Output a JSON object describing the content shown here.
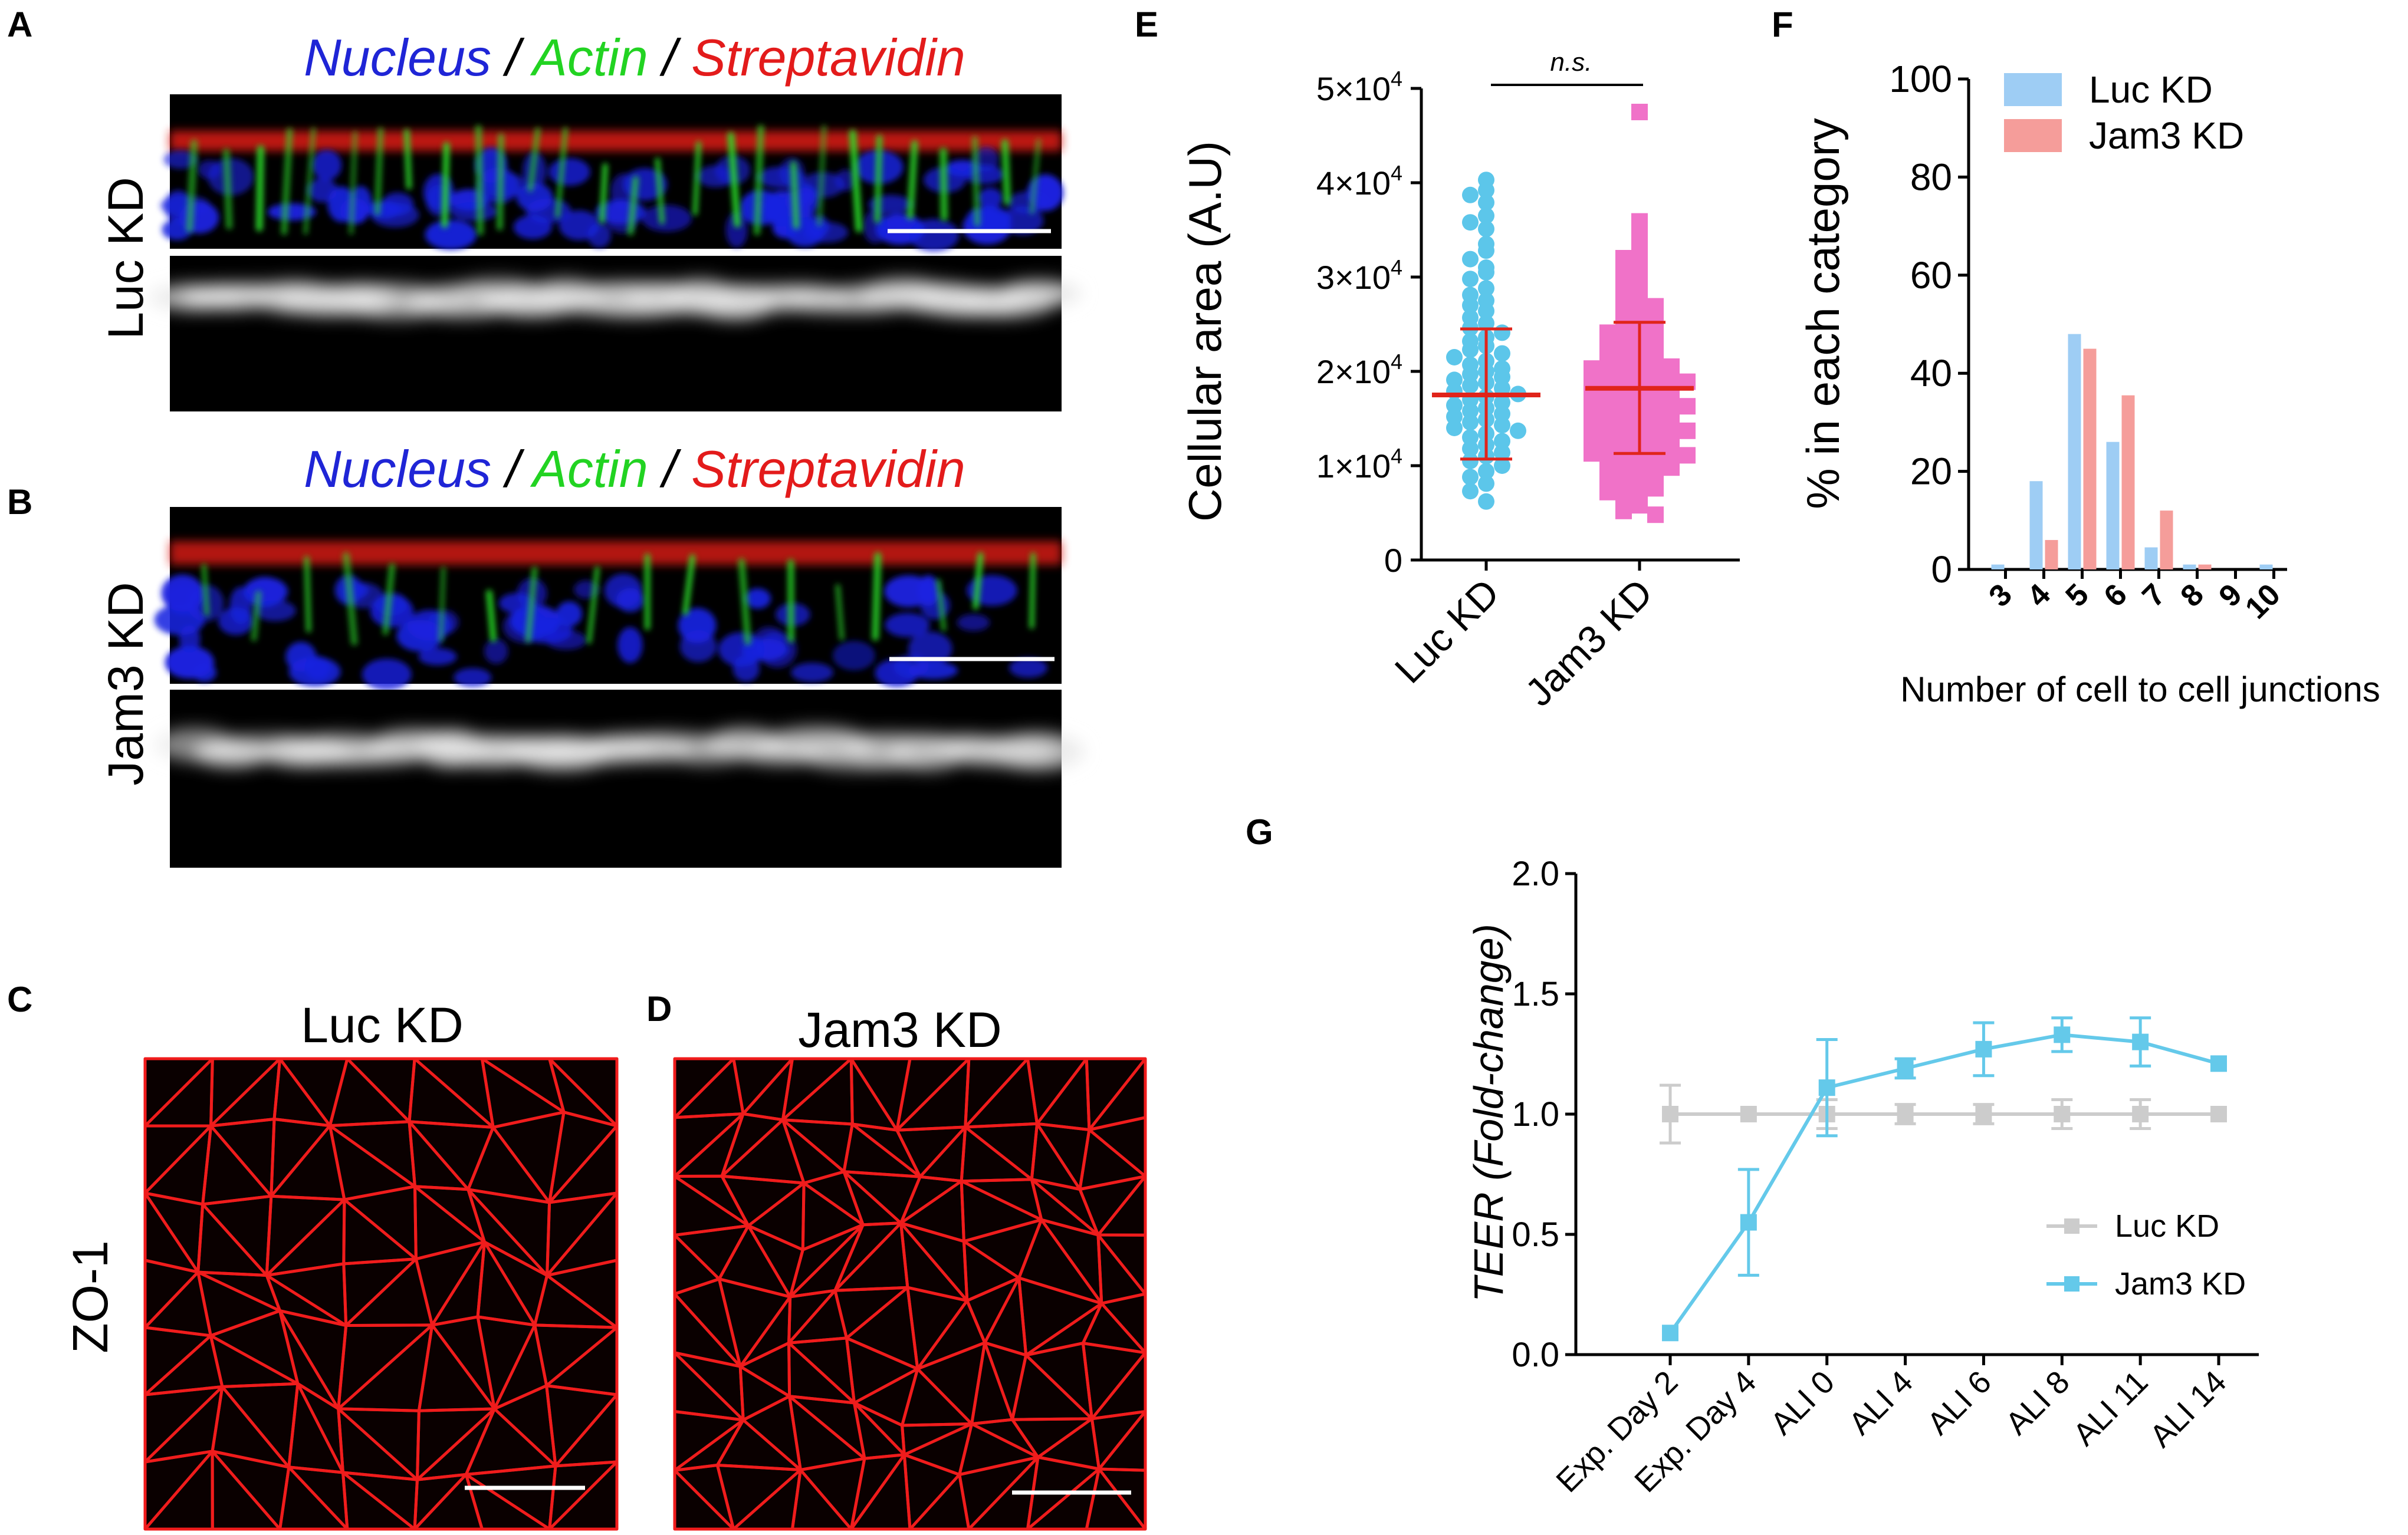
{
  "panels": {
    "a": {
      "letter": "A",
      "row_label": "Luc KD",
      "title_parts": [
        {
          "text": "Nucleus",
          "color": "#1f25d6"
        },
        {
          "text": " / ",
          "color": "#000000"
        },
        {
          "text": "Actin",
          "color": "#22d322"
        },
        {
          "text": " / ",
          "color": "#000000"
        },
        {
          "text": "Streptavidin",
          "color": "#e31b1b"
        }
      ]
    },
    "b": {
      "letter": "B",
      "row_label": "Jam3 KD",
      "title_parts": [
        {
          "text": "Nucleus",
          "color": "#1f25d6"
        },
        {
          "text": " / ",
          "color": "#000000"
        },
        {
          "text": "Actin",
          "color": "#22d322"
        },
        {
          "text": " / ",
          "color": "#000000"
        },
        {
          "text": "Streptavidin",
          "color": "#e31b1b"
        }
      ]
    },
    "c": {
      "letter": "C",
      "title": "Luc KD",
      "side_label": "ZO-1"
    },
    "d": {
      "letter": "D",
      "title": "Jam3 KD"
    },
    "e": {
      "letter": "E"
    },
    "f": {
      "letter": "F"
    },
    "g": {
      "letter": "G"
    }
  },
  "colors": {
    "luc": "#5cc6ea",
    "jam3": "#f072c8",
    "mean": "#e0241b",
    "bar_luc": "#9ecdf4",
    "bar_jam3": "#f59d9a",
    "teer_luc": "#cccccc",
    "teer_jam3": "#64c9ea"
  },
  "chart_data": [
    {
      "panel": "E",
      "type": "scatter",
      "ylabel": "Cellular area (A.U)",
      "ylim": [
        0,
        50000
      ],
      "yticks": [
        {
          "value": 0,
          "label": "0"
        },
        {
          "value": 10000,
          "label": "1×10",
          "exp": "4"
        },
        {
          "value": 20000,
          "label": "2×10",
          "exp": "4"
        },
        {
          "value": 30000,
          "label": "3×10",
          "exp": "4"
        },
        {
          "value": 40000,
          "label": "4×10",
          "exp": "4"
        },
        {
          "value": 50000,
          "label": "5×10",
          "exp": "4"
        }
      ],
      "categories": [
        "Luc KD",
        "Jam3 KD"
      ],
      "significance": "n.s.",
      "series": [
        {
          "name": "Luc KD",
          "mean": 17500,
          "sd_low": 10700,
          "sd_high": 24500,
          "points": [
            40300,
            39200,
            38700,
            37900,
            36500,
            35800,
            35100,
            33500,
            32800,
            31900,
            31000,
            30500,
            29800,
            28800,
            28100,
            27500,
            27000,
            26400,
            25700,
            25100,
            24600,
            24100,
            23600,
            23200,
            22700,
            22300,
            21900,
            21500,
            21100,
            20700,
            20300,
            20000,
            19700,
            19400,
            19100,
            18800,
            18500,
            18200,
            17900,
            17600,
            17300,
            17000,
            16700,
            16400,
            16100,
            15800,
            15500,
            15200,
            14900,
            14600,
            14300,
            14000,
            13700,
            13400,
            13000,
            12600,
            12200,
            11800,
            11400,
            11000,
            10500,
            10000,
            9400,
            8800,
            8100,
            7300,
            6200
          ]
        },
        {
          "name": "Jam3 KD",
          "mean": 18200,
          "sd_low": 11300,
          "sd_high": 25200,
          "points": [
            47500,
            35900,
            34600,
            33700,
            32800,
            32000,
            31300,
            30700,
            30100,
            29500,
            28900,
            28400,
            27900,
            27400,
            26900,
            26500,
            26100,
            25700,
            25300,
            24900,
            24500,
            24100,
            23800,
            23500,
            23200,
            22900,
            22600,
            22300,
            22000,
            21700,
            21400,
            21100,
            20900,
            20700,
            20500,
            20300,
            20100,
            19900,
            19700,
            19500,
            19300,
            19100,
            18900,
            18700,
            18500,
            18300,
            18100,
            17900,
            17700,
            17500,
            17300,
            17100,
            16900,
            16700,
            16500,
            16300,
            16100,
            15900,
            15700,
            15500,
            15300,
            15100,
            14900,
            14700,
            14500,
            14300,
            14100,
            13900,
            13700,
            13500,
            13300,
            13100,
            12900,
            12700,
            12500,
            12300,
            12100,
            11900,
            11700,
            11500,
            11300,
            11100,
            10900,
            10700,
            10400,
            10100,
            9800,
            9500,
            9200,
            8900,
            8600,
            8300,
            8000,
            7600,
            7200,
            6800,
            6300,
            5800,
            5200,
            4800
          ]
        }
      ]
    },
    {
      "panel": "F",
      "type": "bar",
      "ylabel": "% in each category",
      "xlabel": "Number of cell to cell junctions",
      "ylim": [
        0,
        100
      ],
      "yticks": [
        0,
        20,
        40,
        60,
        80,
        100
      ],
      "categories": [
        "3",
        "4",
        "5",
        "6",
        "7",
        "8",
        "9",
        "10"
      ],
      "legend_position": "top-left",
      "series": [
        {
          "name": "Luc KD",
          "values": [
            1,
            18,
            48,
            26,
            4.5,
            1,
            0,
            1
          ]
        },
        {
          "name": "Jam3 KD",
          "values": [
            0,
            6,
            45,
            35.5,
            12,
            1,
            0,
            0
          ]
        }
      ]
    },
    {
      "panel": "G",
      "type": "line",
      "ylabel": "TEER",
      "ylabel_suffix": " (Fold-change)",
      "ylim": [
        0,
        2
      ],
      "yticks": [
        "0.0",
        "0.5",
        "1.0",
        "1.5",
        "2.0"
      ],
      "categories": [
        "Exp. Day 2",
        "Exp. Day 4",
        "ALI 0",
        "ALI 4",
        "ALI 6",
        "ALI 8",
        "ALI 11",
        "ALI 14"
      ],
      "legend_position": "bottom-right",
      "series": [
        {
          "name": "Luc KD",
          "values": [
            1.0,
            1.0,
            1.0,
            1.0,
            1.0,
            1.0,
            1.0,
            1.0
          ],
          "err": [
            0.12,
            0.0,
            0.06,
            0.04,
            0.04,
            0.06,
            0.06,
            0.0
          ]
        },
        {
          "name": "Jam3 KD",
          "values": [
            0.09,
            0.55,
            1.11,
            1.19,
            1.27,
            1.33,
            1.3,
            1.21
          ],
          "err": [
            0.0,
            0.22,
            0.2,
            0.04,
            0.11,
            0.07,
            0.1,
            0.0
          ]
        }
      ]
    }
  ]
}
